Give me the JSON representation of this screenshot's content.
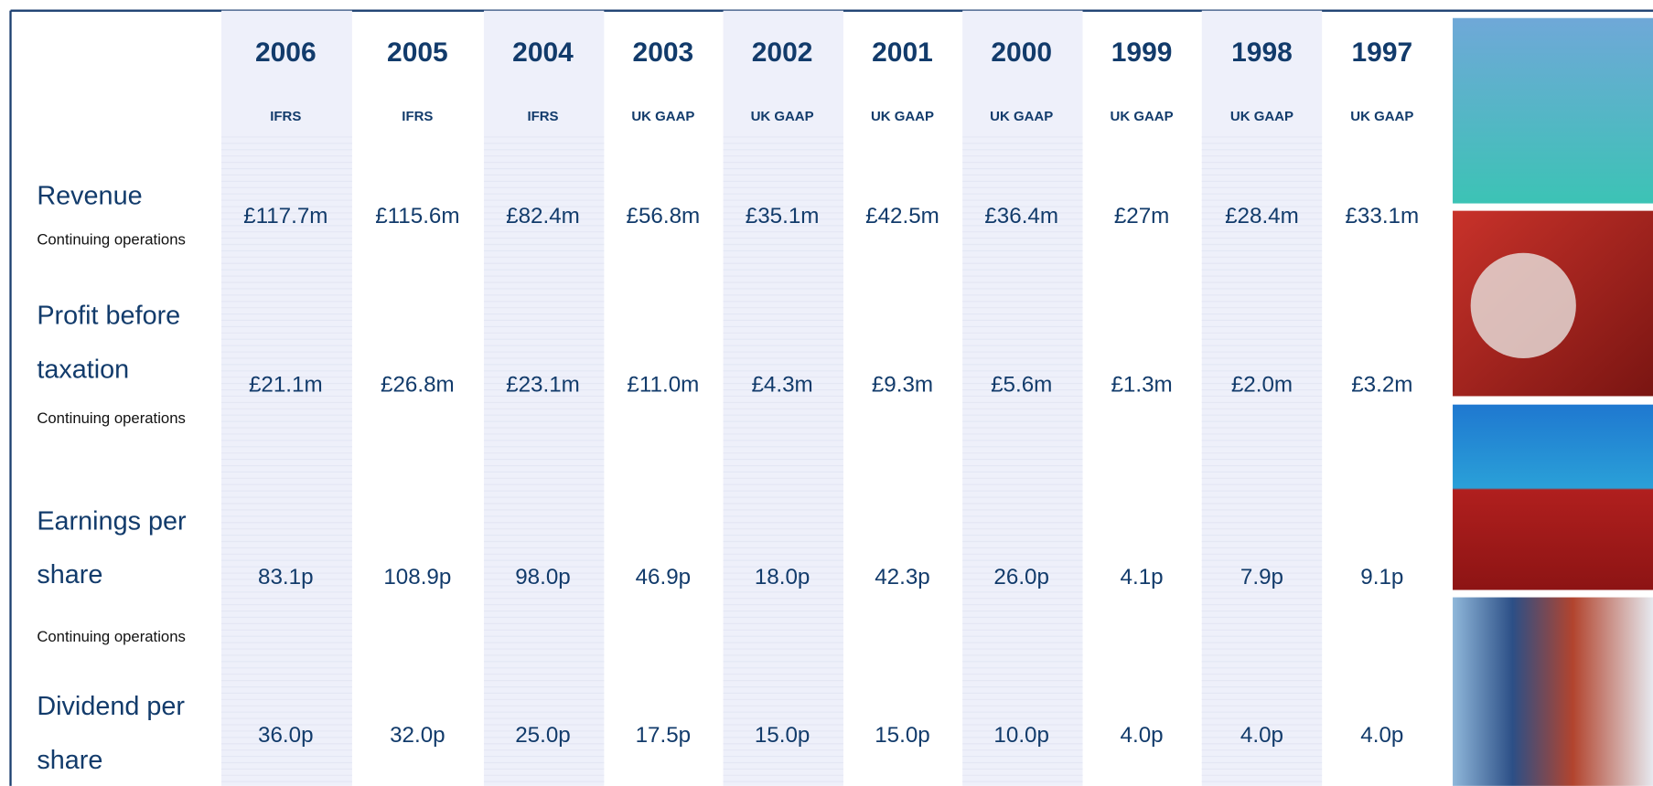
{
  "table": {
    "years": [
      "2006",
      "2005",
      "2004",
      "2003",
      "2002",
      "2001",
      "2000",
      "1999",
      "1998",
      "1997"
    ],
    "standards": [
      "IFRS",
      "IFRS",
      "IFRS",
      "UK GAAP",
      "UK GAAP",
      "UK GAAP",
      "UK GAAP",
      "UK GAAP",
      "UK GAAP",
      "UK GAAP"
    ],
    "rows": [
      {
        "label": [
          "Revenue"
        ],
        "note": "Continuing operations",
        "values": [
          "£117.7m",
          "£115.6m",
          "£82.4m",
          "£56.8m",
          "£35.1m",
          "£42.5m",
          "£36.4m",
          "£27m",
          "£28.4m",
          "£33.1m"
        ]
      },
      {
        "label": [
          "Profit before",
          "taxation"
        ],
        "note": "Continuing operations",
        "values": [
          "£21.1m",
          "£26.8m",
          "£23.1m",
          "£11.0m",
          "£4.3m",
          "£9.3m",
          "£5.6m",
          "£1.3m",
          "£2.0m",
          "£3.2m"
        ]
      },
      {
        "label": [
          "Earnings per",
          "share"
        ],
        "note": "Continuing operations",
        "values": [
          "83.1p",
          "108.9p",
          "98.0p",
          "46.9p",
          "18.0p",
          "42.3p",
          "26.0p",
          "4.1p",
          "7.9p",
          "9.1p"
        ]
      },
      {
        "label": [
          "Dividend per",
          "share"
        ],
        "values": [
          "36.0p",
          "32.0p",
          "25.0p",
          "17.5p",
          "15.0p",
          "15.0p",
          "10.0p",
          "4.0p",
          "4.0p",
          "4.0p"
        ]
      }
    ]
  }
}
